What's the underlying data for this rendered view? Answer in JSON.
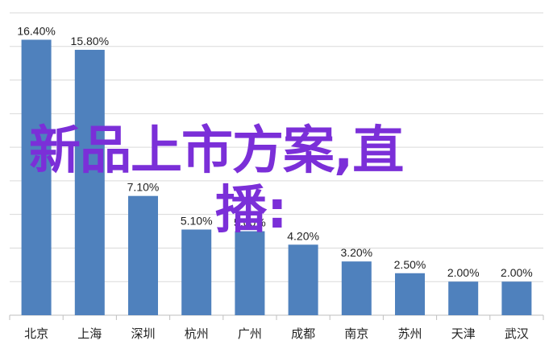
{
  "chart_data": {
    "type": "bar",
    "categories": [
      "北京",
      "上海",
      "深圳",
      "杭州",
      "广州",
      "成都",
      "南京",
      "苏州",
      "天津",
      "武汉"
    ],
    "values": [
      16.4,
      15.8,
      7.1,
      5.1,
      5.0,
      4.2,
      3.2,
      2.5,
      2.0,
      2.0
    ],
    "value_labels": [
      "16.40%",
      "15.80%",
      "7.10%",
      "5.10%",
      "5.00%",
      "4.20%",
      "3.20%",
      "2.50%",
      "2.00%",
      "2.00%"
    ],
    "ylim": [
      0,
      18
    ],
    "grid": true,
    "bar_color": "#4f81bd",
    "grid_color": "#d9d9d9",
    "title": "",
    "xlabel": "",
    "ylabel": ""
  },
  "overlay": {
    "line1": "新品上市方案,直",
    "line2": "播:",
    "color": "#7b2fd8"
  }
}
